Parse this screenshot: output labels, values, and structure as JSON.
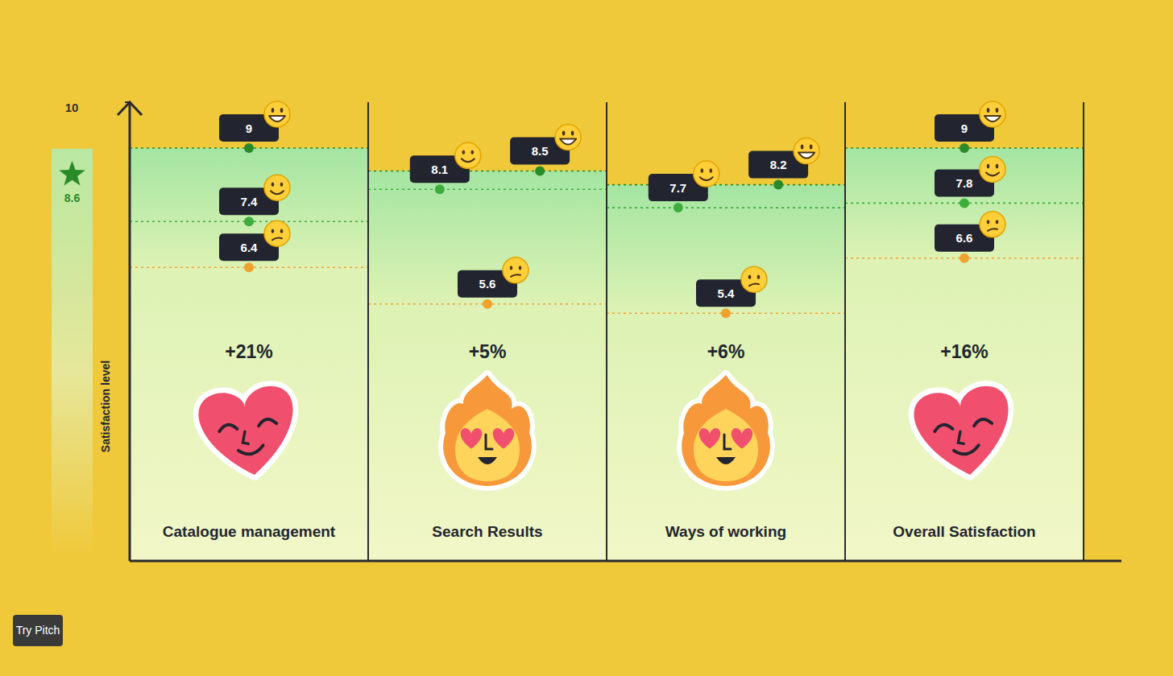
{
  "chart_data": {
    "type": "dot",
    "categories": [
      "Catalogue management",
      "Search Results",
      "Ways of working",
      "Overall Satisfaction"
    ],
    "series": [
      {
        "color": "#f0a22e",
        "marker": "circle",
        "line_style": "dashed",
        "values": [
          6.4,
          5.6,
          5.4,
          6.6
        ]
      },
      {
        "color": "#3dae3d",
        "marker": "circle",
        "line_style": "dashed",
        "values": [
          7.4,
          8.1,
          7.7,
          7.8
        ]
      },
      {
        "color": "#2a8a2a",
        "marker": "circle",
        "line_style": "dashed",
        "values": [
          9,
          8.5,
          8.2,
          9
        ]
      }
    ],
    "ylim": [
      0,
      10
    ],
    "yticks": [
      10
    ],
    "y_label": "Satisfaction level",
    "data_labels": true,
    "grid": false,
    "changes": [
      21,
      5,
      6,
      16
    ],
    "change_labels": [
      "+21%",
      "+5%",
      "+6%",
      "+16%"
    ],
    "benchmark": 8.6
  },
  "badge": "Try Pitch"
}
